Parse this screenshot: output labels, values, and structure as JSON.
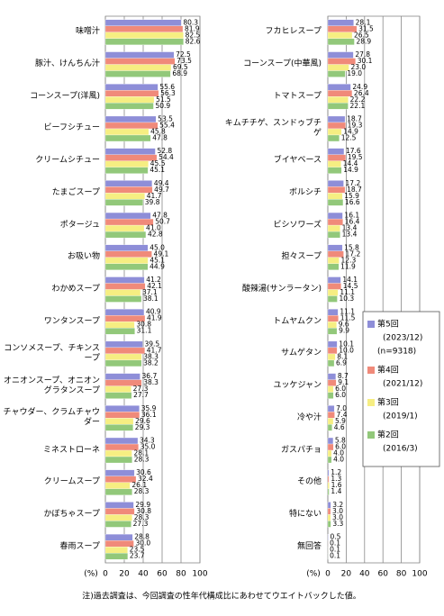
{
  "chart_data": [
    {
      "type": "bar",
      "orientation": "horizontal",
      "xlabel": "(%)",
      "xlim": [
        0,
        100
      ],
      "xticks": [
        0,
        20,
        40,
        60,
        80,
        100
      ],
      "grid": true,
      "categories": [
        "味噌汁",
        "豚汁、けんちん汁",
        "コーンスープ(洋風)",
        "ビーフシチュー",
        "クリームシチュー",
        "たまごスープ",
        "ポタージュ",
        "お吸い物",
        "わかめスープ",
        "ワンタンスープ",
        "コンソメスープ、チキンスープ",
        "オニオンスープ、オニオングラタンスープ",
        "チャウダー、クラムチャウダー",
        "ミネストローネ",
        "クリームスープ",
        "かぼちゃスープ",
        "春雨スープ"
      ],
      "series": [
        {
          "color": "#8e8ed8",
          "values": [
            80.3,
            72.5,
            55.6,
            53.5,
            52.8,
            49.4,
            47.8,
            45.0,
            41.2,
            40.9,
            39.5,
            36.7,
            35.9,
            34.3,
            30.6,
            29.9,
            28.8
          ],
          "value_labels": [
            "80.3",
            "72.5",
            "55.6",
            "53.5",
            "52.8",
            "49.4",
            "47.8",
            "45.0",
            "41.2",
            "40.9",
            "39.5",
            "36.7",
            "35.9",
            "34.3",
            "30.6",
            "29.9",
            "28.8"
          ]
        },
        {
          "color": "#f08a7a",
          "values": [
            81.9,
            73.5,
            56.3,
            55.4,
            54.4,
            49.7,
            50.7,
            49.1,
            42.1,
            41.9,
            41.7,
            38.3,
            36.1,
            35.0,
            32.4,
            30.8,
            30.0
          ],
          "value_labels": [
            "81.9",
            "73.5",
            "56.3",
            "55.4",
            "54.4",
            "49.7",
            "50.7",
            "49.1",
            "42.1",
            "41.9",
            "41.7",
            "38.3",
            "36.1",
            "35.0",
            "32.4",
            "30.8",
            "30.0"
          ]
        },
        {
          "color": "#f6ee82",
          "values": [
            82.5,
            69.5,
            51.5,
            45.8,
            45.5,
            41.7,
            41.0,
            45.1,
            37.1,
            30.8,
            38.3,
            27.3,
            29.6,
            28.1,
            26.1,
            28.3,
            23.5
          ],
          "value_labels": [
            "82.5",
            "69.5",
            "51.5",
            "45.8",
            "45.5",
            "41.7",
            "41.0",
            "45.1",
            "37.1",
            "30.8",
            "38.3",
            "27.3",
            "29.6",
            "28.1",
            "26.1",
            "28.3",
            "23.5"
          ]
        },
        {
          "color": "#92c87a",
          "values": [
            82.6,
            68.9,
            50.9,
            47.8,
            45.1,
            39.8,
            42.8,
            44.9,
            38.1,
            31.1,
            38.2,
            27.7,
            29.3,
            28.3,
            28.3,
            27.3,
            23.7
          ],
          "value_labels": [
            "82.6",
            "68.9",
            "50.9",
            "47.8",
            "45.1",
            "39.8",
            "42.8",
            "44.9",
            "38.1",
            "31.1",
            "38.2",
            "27.7",
            "29.3",
            "28.3",
            "28.3",
            "27.3",
            "23.7"
          ]
        }
      ]
    },
    {
      "type": "bar",
      "orientation": "horizontal",
      "xlabel": "(%)",
      "xlim": [
        0,
        100
      ],
      "xticks": [
        0,
        20,
        40,
        60,
        80,
        100
      ],
      "grid": true,
      "legend": "right",
      "categories": [
        "フカヒレスープ",
        "コーンスープ(中華風)",
        "トマトスープ",
        "キムチチゲ、スンドゥブチゲ",
        "ブイヤベース",
        "ボルシチ",
        "ビシソワーズ",
        "担々スープ",
        "酸辣湯(サンラータン)",
        "トムヤムクン",
        "サムゲタン",
        "ユッケジャン",
        "冷や汁",
        "ガスパチョ",
        "その他",
        "特にない",
        "無回答"
      ],
      "series": [
        {
          "name": "第5回",
          "period": "(2023/12)",
          "n": "(n=9318)",
          "color": "#8e8ed8",
          "values": [
            28.1,
            27.8,
            24.9,
            18.7,
            17.6,
            17.2,
            16.1,
            15.8,
            14.1,
            11.1,
            10.1,
            8.7,
            7.0,
            5.8,
            1.2,
            3.2,
            0.5
          ],
          "value_labels": [
            "28.1",
            "27.8",
            "24.9",
            "18.7",
            "17.6",
            "17.2",
            "16.1",
            "15.8",
            "14.1",
            "11.1",
            "10.1",
            "8.7",
            "7.0",
            "5.8",
            "1.2",
            "3.2",
            "0.5"
          ]
        },
        {
          "name": "第4回",
          "period": "(2021/12)",
          "color": "#f08a7a",
          "values": [
            31.5,
            30.1,
            26.4,
            19.3,
            19.5,
            18.7,
            16.4,
            17.2,
            14.5,
            11.5,
            10.0,
            9.1,
            7.4,
            6.0,
            1.3,
            3.0,
            0.1
          ],
          "value_labels": [
            "31.5",
            "30.1",
            "26.4",
            "19.3",
            "19.5",
            "18.7",
            "16.4",
            "17.2",
            "14.5",
            "11.5",
            "10.0",
            "9.1",
            "7.4",
            "6.0",
            "1.3",
            "3.0",
            "0.1"
          ]
        },
        {
          "name": "第3回",
          "period": "(2019/1)",
          "color": "#f6ee82",
          "values": [
            26.5,
            23.0,
            22.2,
            14.9,
            14.4,
            15.9,
            13.4,
            12.3,
            11.1,
            9.6,
            8.1,
            6.0,
            5.9,
            4.0,
            1.6,
            3.0,
            0.1
          ],
          "value_labels": [
            "26.5",
            "23.0",
            "22.2",
            "14.9",
            "14.4",
            "15.9",
            "13.4",
            "12.3",
            "11.1",
            "9.6",
            "8.1",
            "6.0",
            "5.9",
            "4.0",
            "1.6",
            "3.0",
            "0.1"
          ]
        },
        {
          "name": "第2回",
          "period": "(2016/3)",
          "color": "#92c87a",
          "values": [
            28.9,
            19.0,
            22.1,
            12.5,
            14.9,
            16.6,
            13.4,
            11.9,
            10.3,
            9.9,
            6.9,
            6.0,
            4.6,
            4.0,
            1.4,
            3.3,
            0.1
          ],
          "value_labels": [
            "28.9",
            "19.0",
            "22.1",
            "12.5",
            "14.9",
            "16.6",
            "13.4",
            "11.9",
            "10.3",
            "9.9",
            "6.9",
            "6.0",
            "4.6",
            "4.0",
            "1.4",
            "3.3",
            "0.1"
          ]
        }
      ]
    }
  ],
  "note": "注)過去調査は、今回調査の性年代構成比にあわせてウエイトバックした値。"
}
